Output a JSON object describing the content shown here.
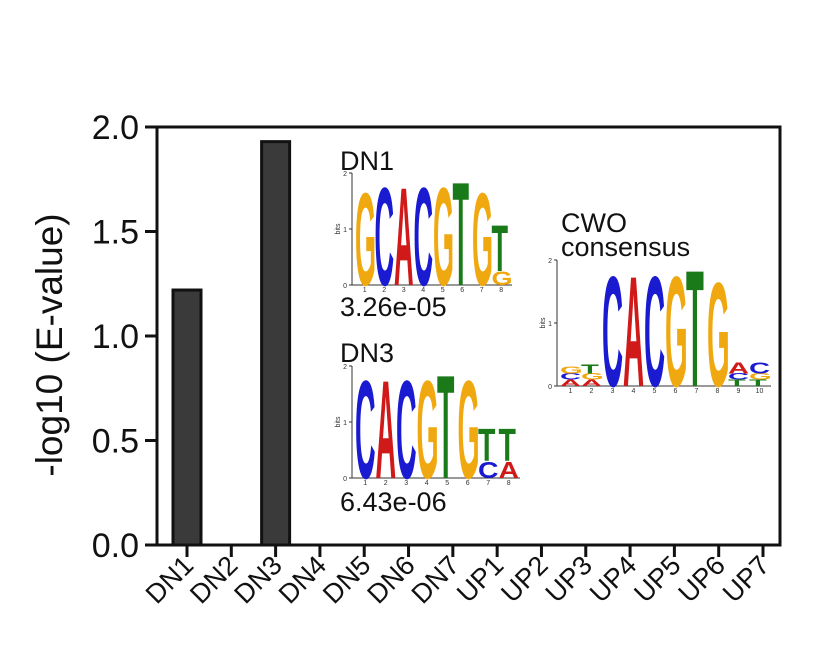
{
  "chart_data": {
    "type": "bar",
    "categories": [
      "DN1",
      "DN2",
      "DN3",
      "DN4",
      "DN5",
      "DN6",
      "DN7",
      "UP1",
      "UP2",
      "UP3",
      "UP4",
      "UP5",
      "UP6",
      "UP7"
    ],
    "values": [
      1.22,
      0,
      1.93,
      0,
      0,
      0,
      0,
      0,
      0,
      0,
      0,
      0,
      0,
      0
    ],
    "xlabel": "",
    "ylabel": "-log10 (E-value)",
    "ylim": [
      0,
      2.0
    ],
    "yticks": [
      "0.0",
      "0.5",
      "1.0",
      "1.5",
      "2.0"
    ],
    "grid": false,
    "bar_color": "#3a3a3a",
    "insets": [
      {
        "title": "DN1",
        "evalue": "3.26e-05",
        "axis_label": "bits",
        "yticks": [
          "0",
          "1",
          "2"
        ],
        "positions": [
          [
            [
              "G",
              1.7
            ]
          ],
          [
            [
              "C",
              1.8
            ]
          ],
          [
            [
              "A",
              1.8
            ]
          ],
          [
            [
              "C",
              1.8
            ]
          ],
          [
            [
              "G",
              1.8
            ]
          ],
          [
            [
              "T",
              1.9
            ]
          ],
          [
            [
              "G",
              1.7
            ]
          ],
          [
            [
              "G",
              0.25
            ],
            [
              "T",
              0.85
            ]
          ]
        ]
      },
      {
        "title": "DN3",
        "evalue": "6.43e-06",
        "axis_label": "bits",
        "yticks": [
          "0",
          "1",
          "2"
        ],
        "positions": [
          [
            [
              "C",
              1.8
            ]
          ],
          [
            [
              "A",
              1.8
            ]
          ],
          [
            [
              "C",
              1.8
            ]
          ],
          [
            [
              "G",
              1.8
            ]
          ],
          [
            [
              "T",
              1.9
            ]
          ],
          [
            [
              "G",
              1.8
            ]
          ],
          [
            [
              "C",
              0.3
            ],
            [
              "T",
              0.6
            ]
          ],
          [
            [
              "A",
              0.3
            ],
            [
              "T",
              0.6
            ]
          ]
        ]
      },
      {
        "title_line1": "CWO",
        "title_line2": "consensus",
        "axis_label": "bits",
        "yticks": [
          "0",
          "1",
          "2"
        ],
        "positions": [
          [
            [
              "A",
              0.1
            ],
            [
              "C",
              0.1
            ],
            [
              "G",
              0.12
            ]
          ],
          [
            [
              "A",
              0.1
            ],
            [
              "G",
              0.1
            ],
            [
              "T",
              0.15
            ]
          ],
          [
            [
              "C",
              1.8
            ]
          ],
          [
            [
              "A",
              1.8
            ]
          ],
          [
            [
              "C",
              1.8
            ]
          ],
          [
            [
              "G",
              1.8
            ]
          ],
          [
            [
              "T",
              1.9
            ]
          ],
          [
            [
              "G",
              1.7
            ]
          ],
          [
            [
              "T",
              0.1
            ],
            [
              "C",
              0.1
            ],
            [
              "A",
              0.18
            ]
          ],
          [
            [
              "T",
              0.1
            ],
            [
              "G",
              0.1
            ],
            [
              "C",
              0.18
            ]
          ]
        ]
      }
    ]
  },
  "nucleotide_colors": {
    "A": "#d01a1a",
    "C": "#1a1ad0",
    "G": "#f0a810",
    "T": "#1a7a1a"
  }
}
